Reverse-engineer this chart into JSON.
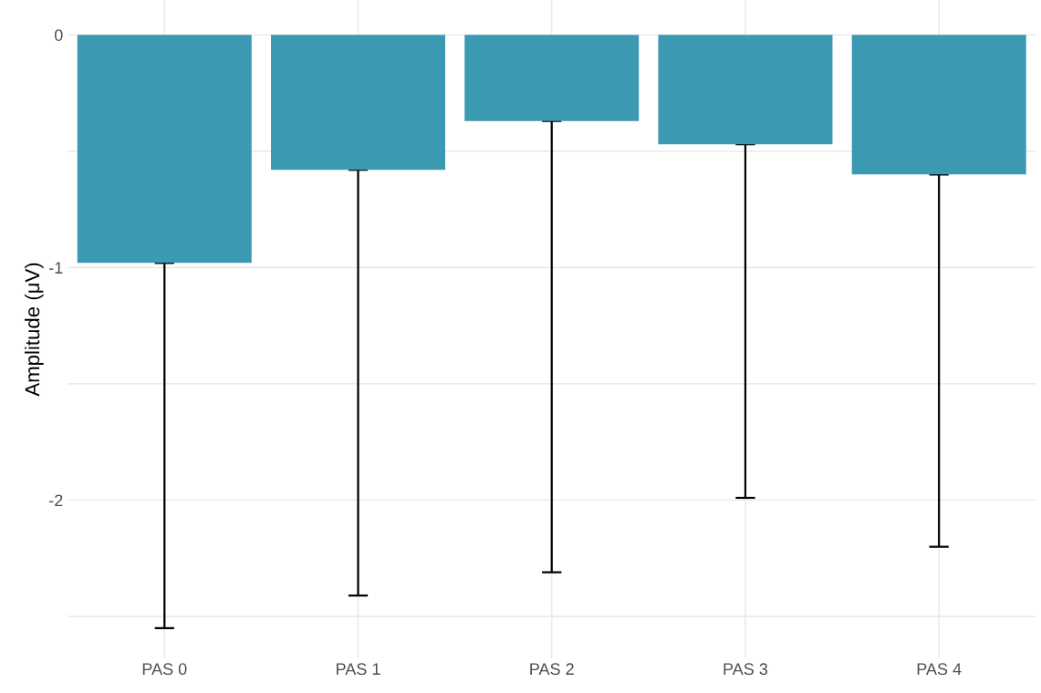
{
  "chart_data": {
    "type": "bar",
    "ylabel": "Amplitude (μV)",
    "categories": [
      "PAS 0",
      "PAS 1",
      "PAS 2",
      "PAS 3",
      "PAS 4"
    ],
    "values": [
      -0.98,
      -0.58,
      -0.37,
      -0.47,
      -0.6
    ],
    "errors": [
      [
        -2.55,
        -0.98
      ],
      [
        -2.41,
        -0.58
      ],
      [
        -2.31,
        -0.37
      ],
      [
        -1.99,
        -0.47
      ],
      [
        -2.2,
        -0.6
      ]
    ],
    "color": "#3c99b2",
    "ylim": [
      -2.68,
      0.15
    ],
    "yticks": [
      {
        "value": -2.5,
        "label": null
      },
      -2,
      {
        "value": -1.5,
        "label": null
      },
      -1,
      {
        "value": -0.5,
        "label": null
      },
      0
    ],
    "grid": true
  }
}
